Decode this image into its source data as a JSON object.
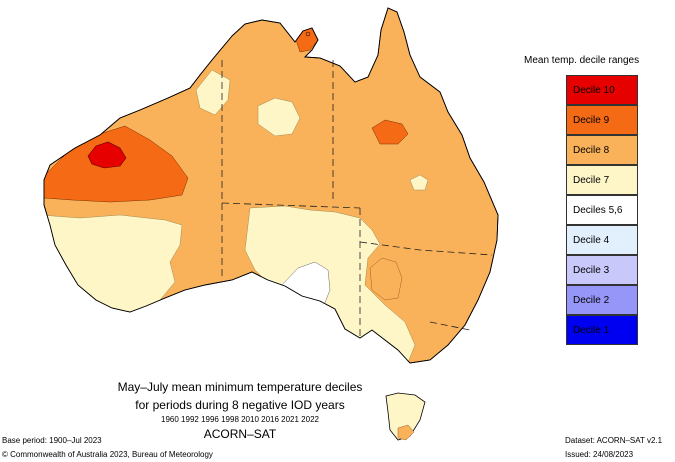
{
  "legend": {
    "title": "Mean temp. decile ranges",
    "items": [
      {
        "label": "Decile 10",
        "color": "#e60000"
      },
      {
        "label": "Decile 9",
        "color": "#f56a14"
      },
      {
        "label": "Decile 8",
        "color": "#f9b25a"
      },
      {
        "label": "Decile 7",
        "color": "#fff6c8"
      },
      {
        "label": "Deciles 5,6",
        "color": "#ffffff"
      },
      {
        "label": "Decile 4",
        "color": "#e2effd"
      },
      {
        "label": "Decile 3",
        "color": "#c8c8fa"
      },
      {
        "label": "Decile 2",
        "color": "#9696f8"
      },
      {
        "label": "Decile 1",
        "color": "#0000f0"
      }
    ]
  },
  "title": {
    "line1": "May–July mean minimum temperature deciles",
    "line2": "for periods during 8 negative IOD years",
    "years": "1960 1992 1996 1998 2010 2016 2021 2022",
    "dataset_name": "ACORN–SAT"
  },
  "footer": {
    "base_period": "Base period: 1900–Jul 2023",
    "copyright": "© Commonwealth of Australia 2023, Bureau of Meteorology",
    "dataset": "Dataset: ACORN–SAT v2.1",
    "issued": "Issued: 24/08/2023"
  },
  "map": {
    "regions": [
      "Decile 10",
      "Decile 9",
      "Decile 8",
      "Decile 7",
      "Deciles 5,6",
      "Decile 4"
    ]
  }
}
